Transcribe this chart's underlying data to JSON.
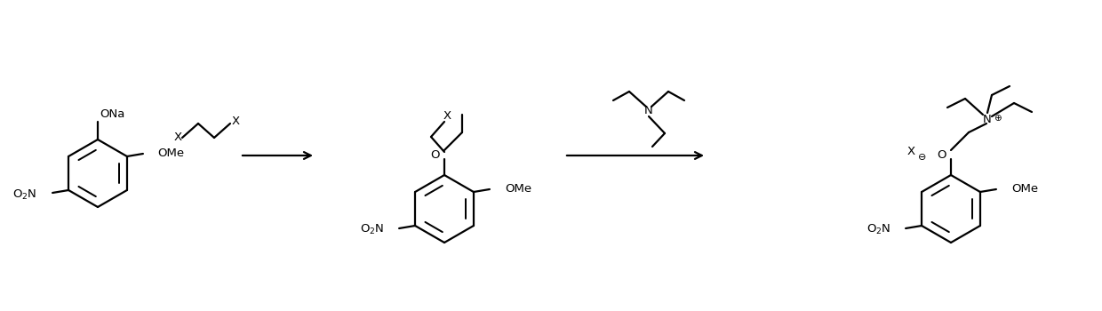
{
  "background_color": "#ffffff",
  "line_color": "#000000",
  "line_width": 1.6,
  "fig_width": 12.4,
  "fig_height": 3.5,
  "dpi": 100,
  "xlim": [
    0,
    124
  ],
  "ylim": [
    0,
    35
  ]
}
